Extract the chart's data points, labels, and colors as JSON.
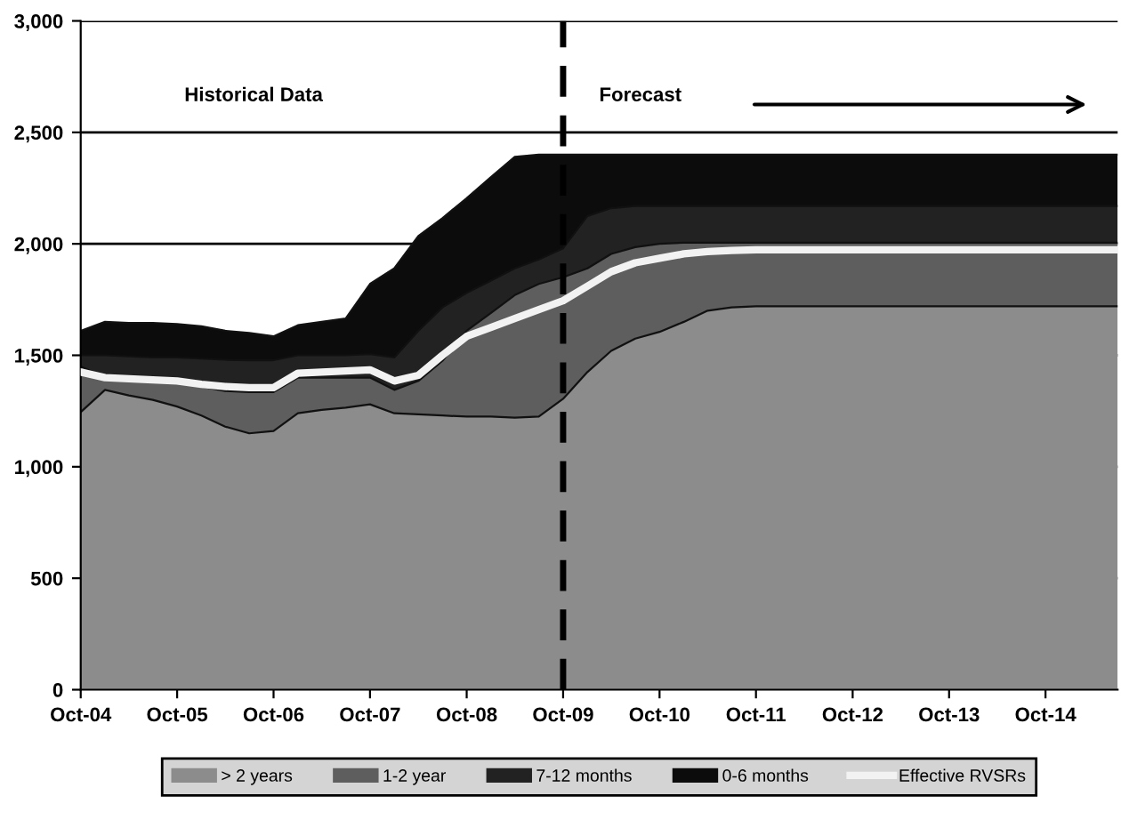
{
  "chart_data": {
    "type": "area",
    "stacked": true,
    "x": [
      "2004-10",
      "2005-01",
      "2005-04",
      "2005-07",
      "2005-10",
      "2006-01",
      "2006-04",
      "2006-07",
      "2006-10",
      "2007-01",
      "2007-04",
      "2007-07",
      "2007-10",
      "2008-01",
      "2008-04",
      "2008-07",
      "2008-10",
      "2009-01",
      "2009-04",
      "2009-07",
      "2009-10",
      "2010-01",
      "2010-04",
      "2010-07",
      "2010-10",
      "2011-01",
      "2011-04",
      "2011-07",
      "2011-10",
      "2012-01",
      "2012-04",
      "2012-07",
      "2012-10",
      "2013-01",
      "2013-04",
      "2013-07",
      "2013-10",
      "2014-01",
      "2014-04",
      "2014-07",
      "2014-10",
      "2015-01",
      "2015-04",
      "2015-07"
    ],
    "series": [
      {
        "name": "> 2 years",
        "color": "#8c8c8c",
        "values": [
          1245,
          1345,
          1320,
          1300,
          1270,
          1230,
          1180,
          1150,
          1160,
          1240,
          1255,
          1265,
          1280,
          1240,
          1235,
          1230,
          1225,
          1225,
          1220,
          1225,
          1305,
          1425,
          1520,
          1575,
          1605,
          1650,
          1700,
          1715,
          1720,
          1720,
          1720,
          1720,
          1720,
          1720,
          1720,
          1720,
          1720,
          1720,
          1720,
          1720,
          1720,
          1720,
          1720,
          1720
        ]
      },
      {
        "name": "1-2 year",
        "color": "#5e5e5e",
        "values": [
          205,
          55,
          75,
          85,
          110,
          130,
          160,
          185,
          175,
          160,
          145,
          135,
          120,
          105,
          150,
          245,
          385,
          465,
          550,
          595,
          545,
          465,
          435,
          410,
          395,
          355,
          305,
          290,
          285,
          285,
          285,
          285,
          285,
          285,
          285,
          285,
          285,
          285,
          285,
          285,
          285,
          285,
          285,
          285
        ]
      },
      {
        "name": "7-12 months",
        "color": "#222222",
        "values": [
          50,
          100,
          100,
          105,
          110,
          125,
          140,
          143,
          143,
          100,
          100,
          100,
          105,
          145,
          225,
          240,
          170,
          145,
          120,
          110,
          130,
          235,
          205,
          185,
          170,
          165,
          165,
          165,
          165,
          165,
          165,
          165,
          165,
          165,
          165,
          165,
          165,
          165,
          165,
          165,
          165,
          165,
          165,
          165
        ]
      },
      {
        "name": "0-6 months",
        "color": "#0c0c0c",
        "values": [
          110,
          150,
          150,
          155,
          150,
          145,
          130,
          122,
          107,
          135,
          150,
          165,
          315,
          400,
          425,
          400,
          425,
          465,
          500,
          470,
          420,
          275,
          240,
          230,
          230,
          230,
          230,
          230,
          230,
          230,
          230,
          230,
          230,
          230,
          230,
          230,
          230,
          230,
          230,
          230,
          230,
          230,
          230,
          230
        ]
      },
      {
        "name": "Effective RVSRs",
        "type": "line",
        "color": "#f2f2f2",
        "values": [
          1425,
          1400,
          1395,
          1390,
          1385,
          1370,
          1360,
          1355,
          1355,
          1420,
          1425,
          1430,
          1435,
          1385,
          1410,
          1500,
          1585,
          1625,
          1665,
          1705,
          1745,
          1810,
          1875,
          1915,
          1935,
          1955,
          1965,
          1970,
          1973,
          1973,
          1973,
          1973,
          1973,
          1973,
          1973,
          1973,
          1973,
          1973,
          1973,
          1973,
          1973,
          1973,
          1973,
          1973
        ]
      }
    ],
    "xlim": [
      "2004-10",
      "2015-07"
    ],
    "xticks": [
      {
        "value": "2004-10",
        "label": "Oct-04"
      },
      {
        "value": "2005-10",
        "label": "Oct-05"
      },
      {
        "value": "2006-10",
        "label": "Oct-06"
      },
      {
        "value": "2007-10",
        "label": "Oct-07"
      },
      {
        "value": "2008-10",
        "label": "Oct-08"
      },
      {
        "value": "2009-10",
        "label": "Oct-09"
      },
      {
        "value": "2010-10",
        "label": "Oct-10"
      },
      {
        "value": "2011-10",
        "label": "Oct-11"
      },
      {
        "value": "2012-10",
        "label": "Oct-12"
      },
      {
        "value": "2013-10",
        "label": "Oct-13"
      },
      {
        "value": "2014-10",
        "label": "Oct-14"
      }
    ],
    "ylim": [
      0,
      3000
    ],
    "yticks": [
      0,
      500,
      {
        "value": 1000,
        "label": "1,000"
      },
      {
        "value": 1500,
        "label": "1,500"
      },
      {
        "value": 2000,
        "label": "2,000"
      },
      {
        "value": 2500,
        "label": "2,500"
      },
      {
        "value": 3000,
        "label": "3,000"
      }
    ],
    "grid": "y",
    "legend": "bottom",
    "ref_lines": [
      {
        "axis": "x",
        "value": "2009-10",
        "color": "#000000",
        "line_style": "dashed"
      }
    ],
    "annotations": [
      "Historical Data",
      "Forecast"
    ]
  }
}
